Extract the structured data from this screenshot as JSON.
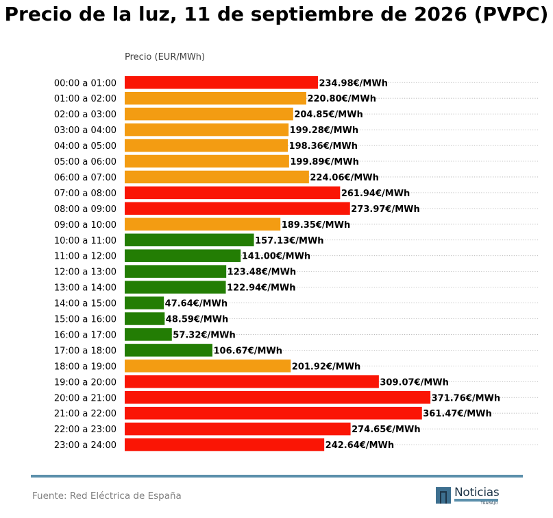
{
  "chart_data": {
    "type": "bar",
    "orientation": "horizontal",
    "title": "Precio de la luz, 11 de septiembre de 2026 (PVPC)",
    "xlabel": "Precio (EUR/MWh)",
    "ylabel": "",
    "xlim": [
      0,
      420
    ],
    "grid": "dotted horizontal lines",
    "value_suffix": "€/MWh",
    "categories": [
      "00:00 a 01:00",
      "01:00 a 02:00",
      "02:00 a 03:00",
      "03:00 a 04:00",
      "04:00 a 05:00",
      "05:00 a 06:00",
      "06:00 a 07:00",
      "07:00 a 08:00",
      "08:00 a 09:00",
      "09:00 a 10:00",
      "10:00 a 11:00",
      "11:00 a 12:00",
      "12:00 a 13:00",
      "13:00 a 14:00",
      "14:00 a 15:00",
      "15:00 a 16:00",
      "16:00 a 17:00",
      "17:00 a 18:00",
      "18:00 a 19:00",
      "19:00 a 20:00",
      "20:00 a 21:00",
      "21:00 a 22:00",
      "22:00 a 23:00",
      "23:00 a 24:00"
    ],
    "values": [
      234.98,
      220.8,
      204.85,
      199.28,
      198.36,
      199.89,
      224.06,
      261.94,
      273.97,
      189.35,
      157.13,
      141.0,
      123.48,
      122.94,
      47.64,
      48.59,
      57.32,
      106.67,
      201.92,
      309.07,
      371.76,
      361.47,
      274.65,
      242.64
    ],
    "bar_colors": [
      "#fa1505",
      "#f39c12",
      "#f39c12",
      "#f39c12",
      "#f39c12",
      "#f39c12",
      "#f39c12",
      "#fa1505",
      "#fa1505",
      "#f39c12",
      "#237d04",
      "#237d04",
      "#237d04",
      "#237d04",
      "#237d04",
      "#237d04",
      "#237d04",
      "#237d04",
      "#f39c12",
      "#fa1505",
      "#fa1505",
      "#fa1505",
      "#fa1505",
      "#fa1505"
    ]
  },
  "footer": {
    "source": "Fuente: Red Eléctrica de España",
    "logo_word": "Noticias",
    "logo_sub": "TRABAJO"
  },
  "colors": {
    "rule": "#5b8fab",
    "grid": "#b0b0b0"
  }
}
